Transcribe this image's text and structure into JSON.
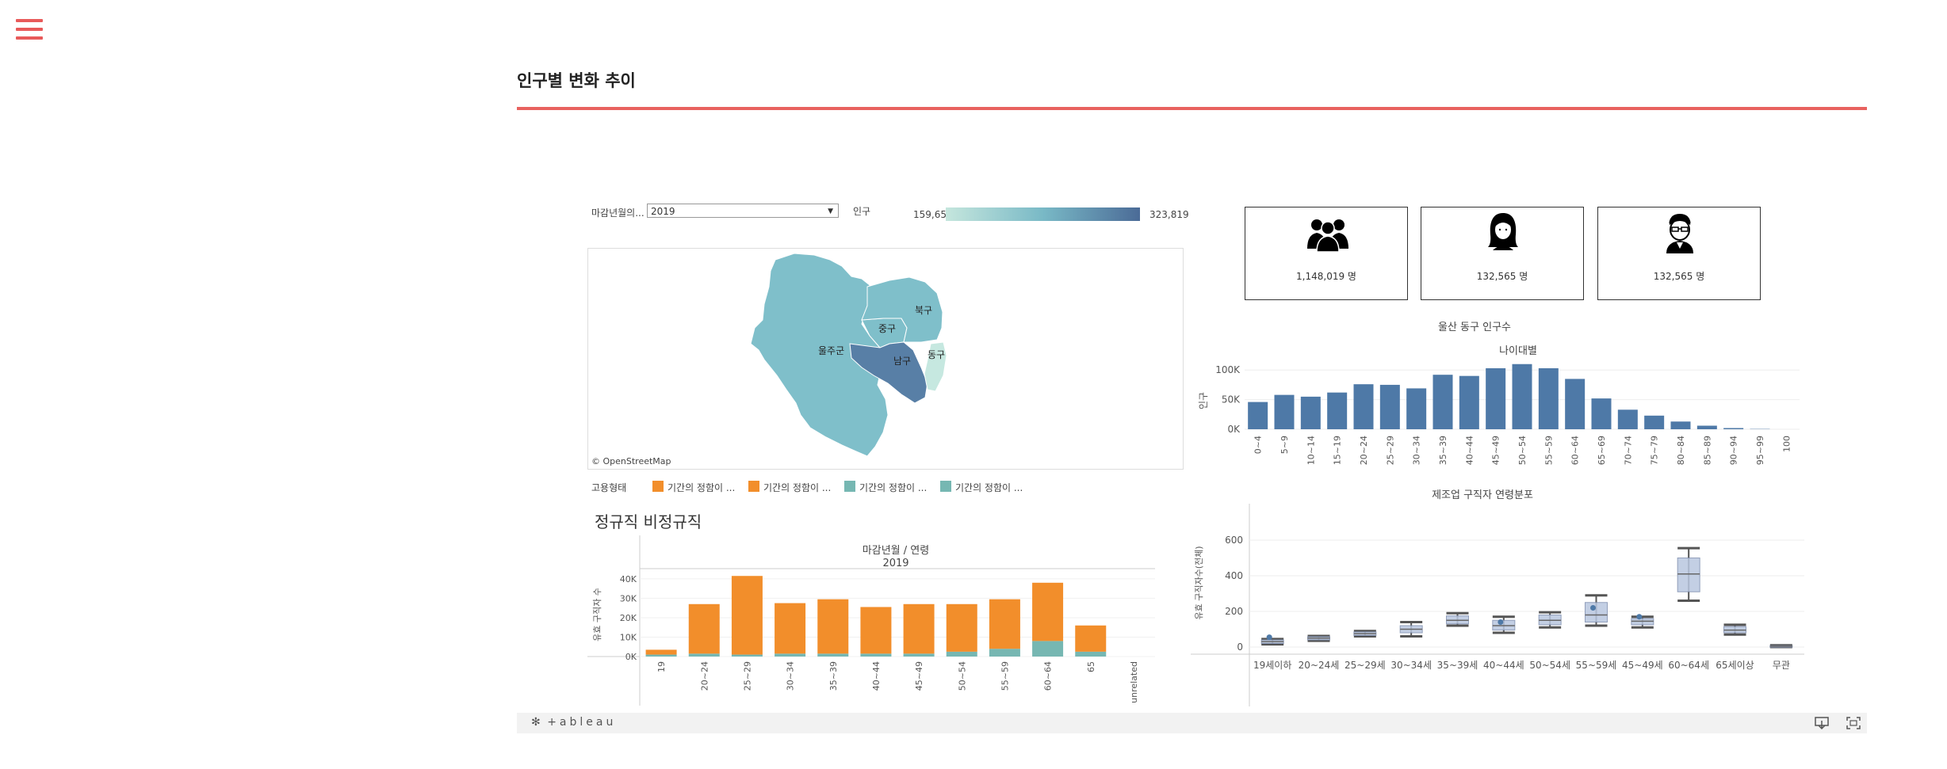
{
  "page": {
    "title": "인구별 변화 추이"
  },
  "filter": {
    "label": "마감년월의...",
    "value": "2019"
  },
  "map_legend": {
    "label": "인구",
    "min": "159,656",
    "max": "323,819"
  },
  "map": {
    "districts": [
      {
        "name": "울주군",
        "color": "#7fbfca"
      },
      {
        "name": "중구",
        "color": "#7fbfca"
      },
      {
        "name": "북구",
        "color": "#7fbfca"
      },
      {
        "name": "남구",
        "color": "#587fa6"
      },
      {
        "name": "동구",
        "color": "#c6e8e0"
      }
    ],
    "attribution": "© OpenStreetMap"
  },
  "kpis": [
    {
      "icon": "group-icon",
      "value": "1,148,019 명"
    },
    {
      "icon": "woman-icon",
      "value": "132,565 명"
    },
    {
      "icon": "man-icon",
      "value": "132,565 명"
    }
  ],
  "employment_legend": {
    "label": "고용형태",
    "items": [
      {
        "label": "기간의 정함이 ...",
        "color": "#f28e2b"
      },
      {
        "label": "기간의 정함이 ...",
        "color": "#f28e2b"
      },
      {
        "label": "기간의 정함이 ...",
        "color": "#76b7b2"
      },
      {
        "label": "기간의 정함이 ...",
        "color": "#76b7b2"
      }
    ]
  },
  "sections": {
    "regular_title": "정규직 비정규직"
  },
  "chart_data": [
    {
      "type": "bar",
      "title": "울산 동구 인구수",
      "subtitle": "나이대별",
      "ylabel": "인구",
      "categories": [
        "0~4",
        "5~9",
        "10~14",
        "15~19",
        "20~24",
        "25~29",
        "30~34",
        "35~39",
        "40~44",
        "45~49",
        "50~54",
        "55~59",
        "60~64",
        "65~69",
        "70~74",
        "75~79",
        "80~84",
        "85~89",
        "90~94",
        "95~99",
        "100"
      ],
      "values": [
        46000,
        58000,
        55000,
        62000,
        76000,
        75000,
        69000,
        92000,
        90000,
        103000,
        110000,
        103000,
        85000,
        52000,
        33000,
        23000,
        13000,
        6000,
        2000,
        500,
        0
      ],
      "ylim": [
        0,
        115000
      ],
      "yticks": [
        "0K",
        "50K",
        "100K"
      ],
      "color": "#4e79a7"
    },
    {
      "type": "bar",
      "title": "마감년월 / 연령",
      "subtitle": "2019",
      "ylabel": "유효 구직자 수",
      "categories": [
        "19",
        "20~24",
        "25~29",
        "30~34",
        "35~39",
        "40~44",
        "45~49",
        "50~54",
        "55~59",
        "60~64",
        "65",
        "unrelated"
      ],
      "series": [
        {
          "values": [
            1000,
            1500,
            1000,
            1500,
            1500,
            1500,
            1500,
            2500,
            4000,
            8000,
            2500,
            0
          ],
          "color": "#76b7b2"
        },
        {
          "values": [
            2500,
            25500,
            40500,
            26000,
            28000,
            24000,
            25500,
            24500,
            25500,
            30000,
            13500,
            0
          ],
          "color": "#f28e2b"
        }
      ],
      "ylim": [
        0,
        42000
      ],
      "yticks": [
        "0K",
        "10K",
        "20K",
        "30K",
        "40K"
      ]
    },
    {
      "type": "box",
      "title": "제조업 구직자 연령분포",
      "ylabel": "유효 구직자수(전체)",
      "categories": [
        "19세이하",
        "20~24세",
        "25~29세",
        "30~34세",
        "35~39세",
        "40~44세",
        "50~54세",
        "55~59세",
        "45~49세",
        "60~64세",
        "65세이상",
        "무관"
      ],
      "boxes": [
        {
          "min": 15,
          "q1": 20,
          "median": 30,
          "q3": 40,
          "max": 45,
          "outlier": 55
        },
        {
          "min": 35,
          "q1": 40,
          "median": 50,
          "q3": 58,
          "max": 62
        },
        {
          "min": 60,
          "q1": 65,
          "median": 75,
          "q3": 85,
          "max": 90
        },
        {
          "min": 60,
          "q1": 80,
          "median": 100,
          "q3": 120,
          "max": 140
        },
        {
          "min": 120,
          "q1": 130,
          "median": 150,
          "q3": 175,
          "max": 190
        },
        {
          "min": 80,
          "q1": 95,
          "median": 120,
          "q3": 150,
          "max": 170,
          "outlier": 140
        },
        {
          "min": 110,
          "q1": 125,
          "median": 150,
          "q3": 180,
          "max": 195
        },
        {
          "min": 120,
          "q1": 140,
          "median": 180,
          "q3": 250,
          "max": 290,
          "outlier": 220
        },
        {
          "min": 110,
          "q1": 125,
          "median": 145,
          "q3": 160,
          "max": 170,
          "outlier": 170
        },
        {
          "min": 260,
          "q1": 310,
          "median": 410,
          "q3": 500,
          "max": 555
        },
        {
          "min": 70,
          "q1": 80,
          "median": 95,
          "q3": 115,
          "max": 125
        },
        {
          "min": 0,
          "q1": 2,
          "median": 5,
          "q3": 8,
          "max": 10
        }
      ],
      "ylim": [
        -40,
        760
      ],
      "yticks": [
        0,
        200,
        400,
        600
      ]
    }
  ],
  "footer": {
    "logo": "+ableau"
  }
}
